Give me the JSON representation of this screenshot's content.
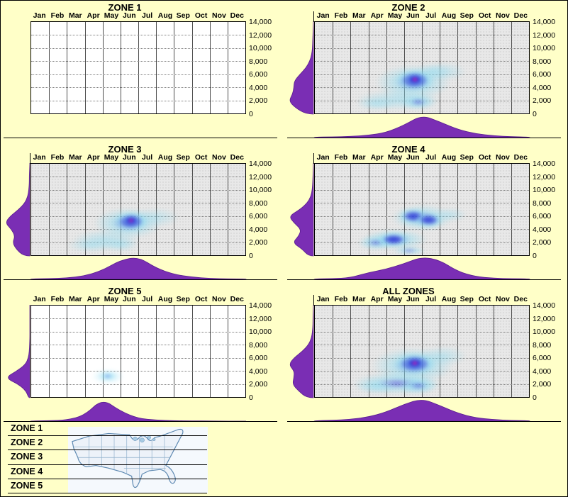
{
  "page": {
    "background_color": "#FFFFC8",
    "border_color": "#000000"
  },
  "chart_data": {
    "type": "heatmap",
    "title": "",
    "x_categories": [
      "Jan",
      "Feb",
      "Mar",
      "Apr",
      "May",
      "Jun",
      "Jul",
      "Aug",
      "Sep",
      "Oct",
      "Nov",
      "Dec"
    ],
    "y_ticks": [
      "14,000",
      "12,000",
      "10,000",
      "8,000",
      "6,000",
      "4,000",
      "2,000",
      "0"
    ],
    "y_range": [
      0,
      14000
    ],
    "grid": "on",
    "marginal_axes": "left-and-bottom",
    "colors": {
      "marginal_fill": "#7A2EB4",
      "marginal_stroke": "#5A1E90",
      "blob_core": "#FF1EA8",
      "blob_mid": "#2B3BD8",
      "blob_outer": "#8EDCF2",
      "stipple_fill": "#E8E8E8",
      "plain_fill": "#FFFFFF"
    },
    "panels": [
      {
        "title": "ZONE 1",
        "grid": "plain",
        "blobs": [],
        "left_marginal": [],
        "bottom_marginal": []
      },
      {
        "title": "ZONE 2",
        "grid": "stipple",
        "blobs": [
          {
            "month": 5.5,
            "elevation": 4800,
            "r_month": 2.1,
            "r_elev": 2700,
            "intensity": 0.5
          },
          {
            "month": 4.7,
            "elevation": 2100,
            "r_month": 2.4,
            "r_elev": 1600,
            "intensity": 0.42
          },
          {
            "month": 7.3,
            "elevation": 6400,
            "r_month": 1.2,
            "r_elev": 1400,
            "intensity": 0.25
          },
          {
            "month": 3.4,
            "elevation": 1500,
            "r_month": 1.1,
            "r_elev": 1000,
            "intensity": 0.3
          },
          {
            "month": 6.6,
            "elevation": 6400,
            "r_month": 1.0,
            "r_elev": 1300,
            "intensity": 0.3
          },
          {
            "month": 5.8,
            "elevation": 1700,
            "r_month": 1.0,
            "r_elev": 1200,
            "intensity": 0.55
          },
          {
            "month": 5.6,
            "elevation": 5100,
            "r_month": 1.1,
            "r_elev": 1700,
            "intensity": 0.8
          },
          {
            "month": 5.6,
            "elevation": 5200,
            "r_month": 0.55,
            "r_elev": 900,
            "intensity": 1.0
          }
        ],
        "left_marginal": [
          0.3,
          0.75,
          1.0,
          0.85,
          0.8,
          0.78,
          0.55,
          0.3,
          0.15,
          0.07,
          0.04,
          0.03,
          0.02,
          0.01,
          0.0
        ],
        "bottom_marginal": [
          0.02,
          0.03,
          0.05,
          0.1,
          0.22,
          0.55,
          1.0,
          0.7,
          0.36,
          0.17,
          0.08,
          0.04,
          0.02
        ]
      },
      {
        "title": "ZONE 3",
        "grid": "stipple",
        "blobs": [
          {
            "month": 5.4,
            "elevation": 4900,
            "r_month": 1.9,
            "r_elev": 2400,
            "intensity": 0.5
          },
          {
            "month": 4.2,
            "elevation": 2400,
            "r_month": 1.9,
            "r_elev": 1500,
            "intensity": 0.4
          },
          {
            "month": 3.3,
            "elevation": 1500,
            "r_month": 1.3,
            "r_elev": 1100,
            "intensity": 0.3
          },
          {
            "month": 7.0,
            "elevation": 5800,
            "r_month": 1.3,
            "r_elev": 1500,
            "intensity": 0.25
          },
          {
            "month": 5.0,
            "elevation": 1600,
            "r_month": 1.0,
            "r_elev": 1000,
            "intensity": 0.35
          },
          {
            "month": 5.6,
            "elevation": 5200,
            "r_month": 1.0,
            "r_elev": 1500,
            "intensity": 0.8
          },
          {
            "month": 5.6,
            "elevation": 5300,
            "r_month": 0.5,
            "r_elev": 800,
            "intensity": 1.0
          }
        ],
        "left_marginal": [
          0.25,
          0.55,
          0.7,
          0.6,
          0.75,
          1.0,
          0.8,
          0.45,
          0.2,
          0.08,
          0.04,
          0.02,
          0.02,
          0.01,
          0.0
        ],
        "bottom_marginal": [
          0.02,
          0.03,
          0.06,
          0.15,
          0.4,
          0.85,
          1.0,
          0.5,
          0.22,
          0.1,
          0.04,
          0.02,
          0.02
        ]
      },
      {
        "title": "ZONE 4",
        "grid": "stipple",
        "blobs": [
          {
            "month": 6.0,
            "elevation": 5700,
            "r_month": 1.7,
            "r_elev": 2000,
            "intensity": 0.45
          },
          {
            "month": 4.5,
            "elevation": 2400,
            "r_month": 1.8,
            "r_elev": 1600,
            "intensity": 0.45
          },
          {
            "month": 3.4,
            "elevation": 1900,
            "r_month": 1.0,
            "r_elev": 1100,
            "intensity": 0.5
          },
          {
            "month": 7.6,
            "elevation": 6200,
            "r_month": 0.9,
            "r_elev": 1100,
            "intensity": 0.25
          },
          {
            "month": 5.3,
            "elevation": 700,
            "r_month": 0.9,
            "r_elev": 700,
            "intensity": 0.5
          },
          {
            "month": 4.4,
            "elevation": 2400,
            "r_month": 0.9,
            "r_elev": 1100,
            "intensity": 0.8
          },
          {
            "month": 5.5,
            "elevation": 6000,
            "r_month": 0.8,
            "r_elev": 1200,
            "intensity": 0.85
          },
          {
            "month": 6.4,
            "elevation": 5400,
            "r_month": 0.8,
            "r_elev": 1100,
            "intensity": 0.8
          }
        ],
        "left_marginal": [
          0.2,
          0.45,
          0.85,
          0.6,
          0.5,
          0.8,
          1.0,
          0.55,
          0.25,
          0.1,
          0.05,
          0.03,
          0.02,
          0.01,
          0.0
        ],
        "bottom_marginal": [
          0.02,
          0.03,
          0.07,
          0.3,
          0.45,
          0.7,
          1.0,
          0.85,
          0.35,
          0.12,
          0.05,
          0.03,
          0.02
        ]
      },
      {
        "title": "ZONE 5",
        "grid": "plain",
        "blobs": [
          {
            "month": 4.3,
            "elevation": 3200,
            "r_month": 0.9,
            "r_elev": 1200,
            "intensity": 0.35
          },
          {
            "month": 4.3,
            "elevation": 3200,
            "r_month": 0.5,
            "r_elev": 650,
            "intensity": 0.5
          }
        ],
        "left_marginal": [
          0.05,
          0.15,
          0.45,
          1.0,
          0.55,
          0.18,
          0.06,
          0.02,
          0.01,
          0.0,
          0.0,
          0.0,
          0.0,
          0.0,
          0.0
        ],
        "bottom_marginal": [
          0.01,
          0.02,
          0.05,
          0.25,
          1.0,
          0.45,
          0.12,
          0.05,
          0.02,
          0.01,
          0.01,
          0.0,
          0.0
        ]
      },
      {
        "title": "ALL ZONES",
        "grid": "stipple",
        "blobs": [
          {
            "month": 5.5,
            "elevation": 4800,
            "r_month": 2.3,
            "r_elev": 2800,
            "intensity": 0.5
          },
          {
            "month": 4.6,
            "elevation": 2100,
            "r_month": 2.5,
            "r_elev": 1700,
            "intensity": 0.45
          },
          {
            "month": 7.2,
            "elevation": 6300,
            "r_month": 1.3,
            "r_elev": 1500,
            "intensity": 0.3
          },
          {
            "month": 3.4,
            "elevation": 1600,
            "r_month": 1.2,
            "r_elev": 1100,
            "intensity": 0.3
          },
          {
            "month": 5.8,
            "elevation": 1700,
            "r_month": 1.1,
            "r_elev": 1300,
            "intensity": 0.55
          },
          {
            "month": 5.6,
            "elevation": 5100,
            "r_month": 1.2,
            "r_elev": 1700,
            "intensity": 0.8
          },
          {
            "month": 5.6,
            "elevation": 5200,
            "r_month": 0.6,
            "r_elev": 900,
            "intensity": 1.0
          }
        ],
        "left_marginal": [
          0.28,
          0.6,
          0.85,
          0.8,
          0.78,
          1.0,
          0.8,
          0.45,
          0.2,
          0.08,
          0.04,
          0.02,
          0.02,
          0.01,
          0.0
        ],
        "bottom_marginal": [
          0.02,
          0.04,
          0.08,
          0.18,
          0.4,
          0.75,
          1.0,
          0.7,
          0.35,
          0.15,
          0.07,
          0.03,
          0.02
        ]
      }
    ]
  },
  "legend": {
    "zones": [
      "ZONE 1",
      "ZONE 2",
      "ZONE 3",
      "ZONE 4",
      "ZONE 5"
    ],
    "map_icon": "usa-map"
  }
}
